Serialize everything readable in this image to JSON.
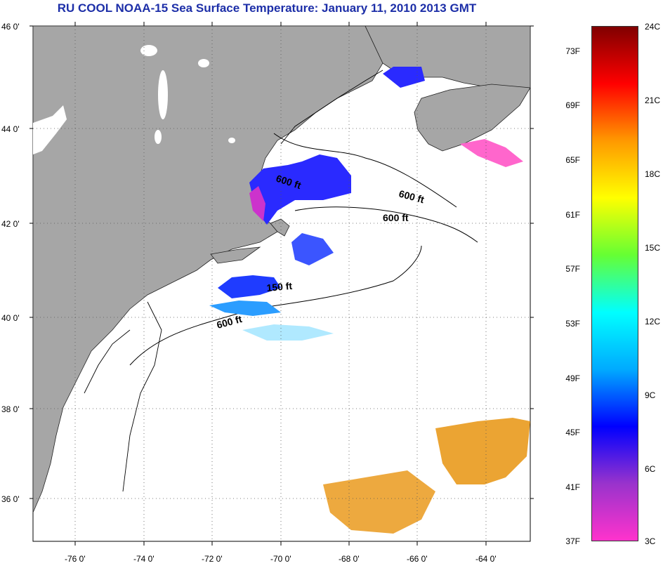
{
  "title": "RU COOL  NOAA-15  Sea Surface Temperature:  January 11, 2010 2013 GMT",
  "map": {
    "lat_ticks": [
      "46 0'",
      "44 0'",
      "42 0'",
      "40 0'",
      "38 0'",
      "36 0'"
    ],
    "lon_ticks": [
      "-76 0'",
      "-74 0'",
      "-72 0'",
      "-70 0'",
      "-68 0'",
      "-66 0'",
      "-64 0'"
    ],
    "land_color": "#a6a6a6",
    "ocean_color": "#ffffff",
    "depth_contours": [
      "600 ft",
      "600 ft",
      "600 ft",
      "150 ft",
      "600 ft"
    ]
  },
  "colorbar": {
    "fahrenheit": [
      "73F",
      "69F",
      "65F",
      "61F",
      "57F",
      "53F",
      "49F",
      "45F",
      "41F",
      "37F"
    ],
    "celsius": [
      "24C",
      "21C",
      "18C",
      "15C",
      "12C",
      "9C",
      "6C",
      "3C"
    ],
    "range_c": [
      3,
      24
    ],
    "colors": [
      "#ff33cc",
      "#9933cc",
      "#0000ff",
      "#00aaff",
      "#00ffff",
      "#66ff33",
      "#ffff00",
      "#ff9900",
      "#ff0000",
      "#800000"
    ]
  }
}
